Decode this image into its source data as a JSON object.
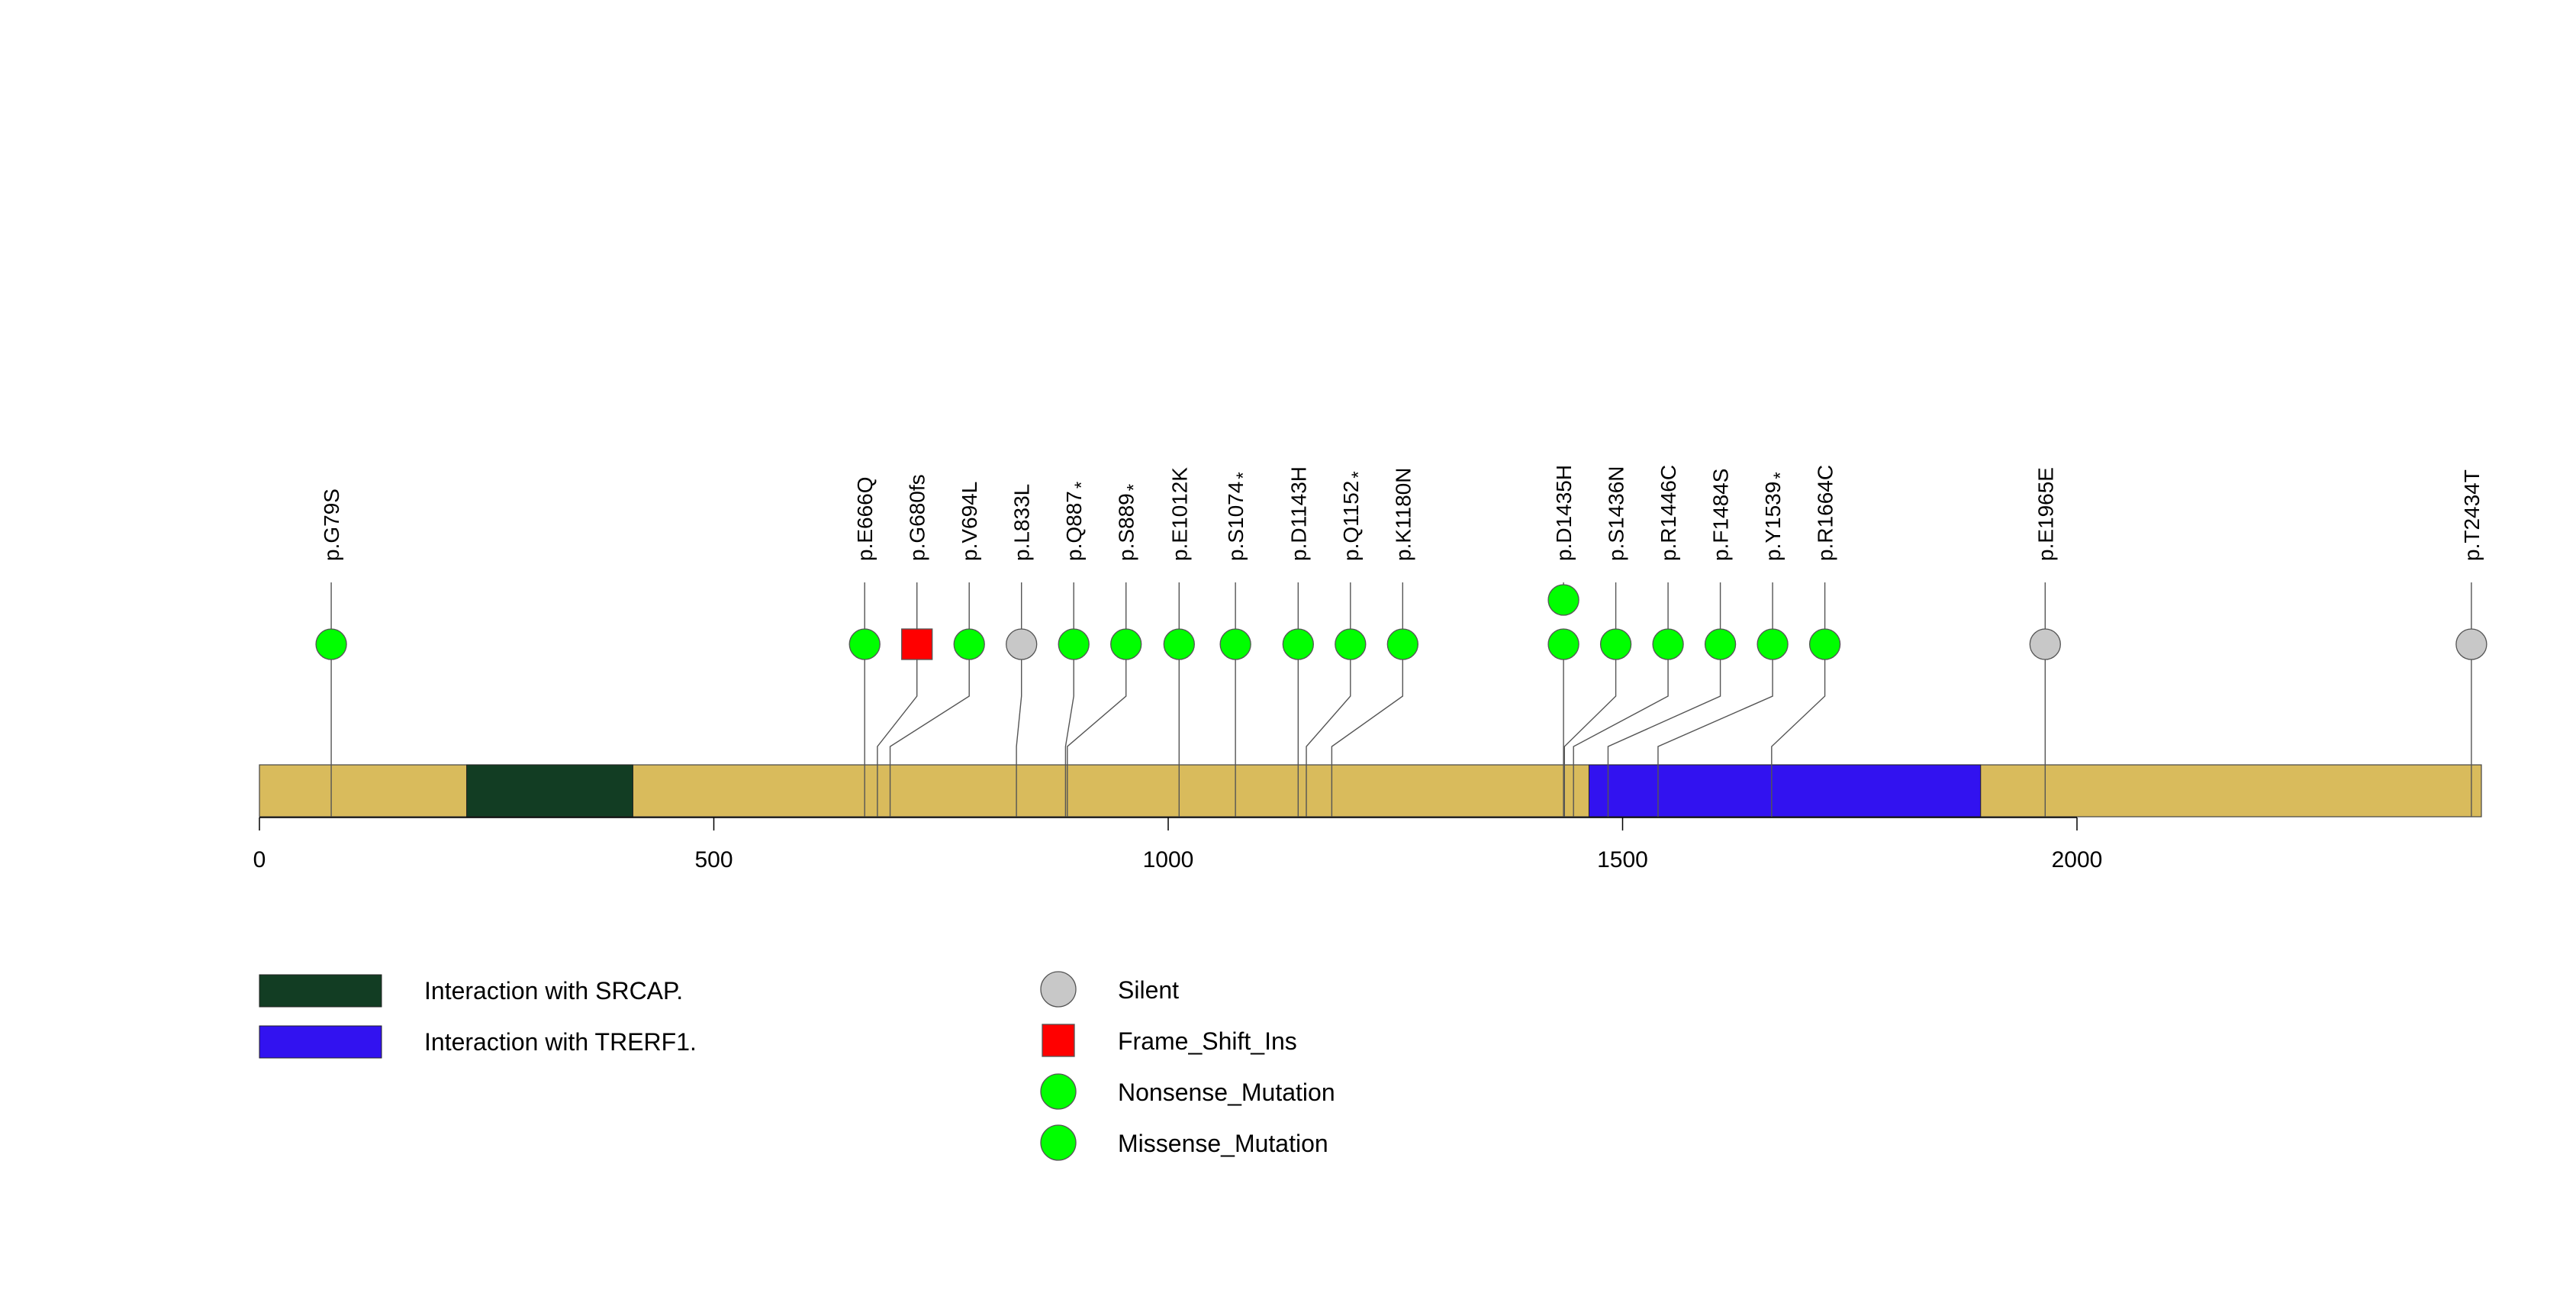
{
  "chart_data": {
    "type": "lollipop",
    "protein_length": 2445,
    "x_axis": {
      "min": 0,
      "max": 2445,
      "ticks": [
        0,
        500,
        1000,
        1500,
        2000
      ]
    },
    "backbone_color": "#D9BB5C",
    "domains": [
      {
        "name": "Interaction with SRCAP.",
        "start": 228,
        "end": 411,
        "color": "#123D23"
      },
      {
        "name": "Interaction with TRERF1.",
        "start": 1463,
        "end": 1894,
        "color": "#3212F0"
      }
    ],
    "mutations": [
      {
        "label": "p.G79S",
        "pos": 79,
        "type": "Missense_Mutation",
        "count": 1
      },
      {
        "label": "p.E666Q",
        "pos": 666,
        "type": "Missense_Mutation",
        "count": 1
      },
      {
        "label": "p.G680fs",
        "pos": 680,
        "type": "Frame_Shift_Ins",
        "count": 1
      },
      {
        "label": "p.V694L",
        "pos": 694,
        "type": "Missense_Mutation",
        "count": 1
      },
      {
        "label": "p.L833L",
        "pos": 833,
        "type": "Silent",
        "count": 1
      },
      {
        "label": "p.Q887",
        "star": "*",
        "pos": 887,
        "type": "Nonsense_Mutation",
        "count": 1
      },
      {
        "label": "p.S889",
        "star": "*",
        "pos": 889,
        "type": "Nonsense_Mutation",
        "count": 1
      },
      {
        "label": "p.E1012K",
        "pos": 1012,
        "type": "Missense_Mutation",
        "count": 1
      },
      {
        "label": "p.S1074",
        "star": "*",
        "pos": 1074,
        "type": "Nonsense_Mutation",
        "count": 1
      },
      {
        "label": "p.D1143H",
        "pos": 1143,
        "type": "Missense_Mutation",
        "count": 1
      },
      {
        "label": "p.Q1152",
        "star": "*",
        "pos": 1152,
        "type": "Nonsense_Mutation",
        "count": 1
      },
      {
        "label": "p.K1180N",
        "pos": 1180,
        "type": "Missense_Mutation",
        "count": 1
      },
      {
        "label": "p.D1435H",
        "pos": 1435,
        "type": "Missense_Mutation",
        "count": 2
      },
      {
        "label": "p.S1436N",
        "pos": 1436,
        "type": "Missense_Mutation",
        "count": 1
      },
      {
        "label": "p.R1446C",
        "pos": 1446,
        "type": "Missense_Mutation",
        "count": 1
      },
      {
        "label": "p.F1484S",
        "pos": 1484,
        "type": "Missense_Mutation",
        "count": 1
      },
      {
        "label": "p.Y1539",
        "star": "*",
        "pos": 1539,
        "type": "Nonsense_Mutation",
        "count": 1
      },
      {
        "label": "p.R1664C",
        "pos": 1664,
        "type": "Missense_Mutation",
        "count": 1
      },
      {
        "label": "p.E1965E",
        "pos": 1965,
        "type": "Silent",
        "count": 1
      },
      {
        "label": "p.T2434T",
        "pos": 2434,
        "type": "Silent",
        "count": 1
      }
    ],
    "legend": {
      "domains": [
        {
          "label": "Interaction with SRCAP.",
          "color": "#123D23"
        },
        {
          "label": "Interaction with TRERF1.",
          "color": "#3212F0"
        }
      ],
      "mutation_types": [
        {
          "label": "Silent",
          "shape": "circle",
          "color": "#C8C8C8"
        },
        {
          "label": "Frame_Shift_Ins",
          "shape": "square",
          "color": "#FF0000"
        },
        {
          "label": "Nonsense_Mutation",
          "shape": "circle",
          "color": "#00FF00"
        },
        {
          "label": "Missense_Mutation",
          "shape": "circle",
          "color": "#00FF00"
        }
      ]
    }
  }
}
